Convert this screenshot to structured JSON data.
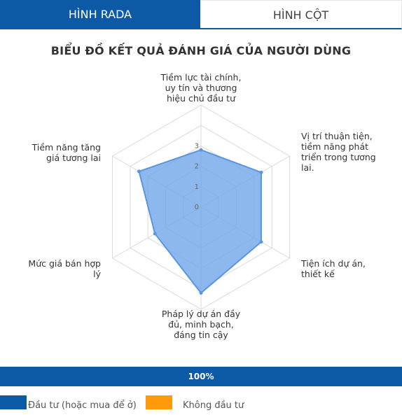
{
  "tabs": [
    {
      "label": "HÌNH RADA",
      "active": true
    },
    {
      "label": "HÌNH CỘT",
      "active": false
    }
  ],
  "chart_data": {
    "type": "radar",
    "title": "BIỂU ĐỒ KẾT QUẢ ĐÁNH GIÁ CỦA NGƯỜI DÙNG",
    "categories": [
      "Tiềm lực tài chính, uy tín và thương hiệu chủ đầu tư",
      "Vị trí thuận tiện, tiềm năng phát triển trong tương lai.",
      "Tiện ích dự án, thiết kế",
      "Pháp lý dự án đầy đủ, minh bạch, đáng tin cậy",
      "Mức giá bán hợp lý",
      "Tiềm năng tăng giá tương lai"
    ],
    "values": [
      2.8,
      3.4,
      3.4,
      4.2,
      2.6,
      3.5
    ],
    "rlim": [
      0,
      5
    ],
    "ticks": [
      "0",
      "1",
      "2",
      "3"
    ],
    "fill_color": "#6fa6ea",
    "line_color": "#5b95e0"
  },
  "progress": {
    "label": "100%",
    "value": 1.0
  },
  "legend": [
    {
      "label": "Đầu tư (hoặc mua để ở)",
      "color": "#0c5aa6"
    },
    {
      "label": "Không đầu tư",
      "color": "#ff9a0a"
    }
  ]
}
